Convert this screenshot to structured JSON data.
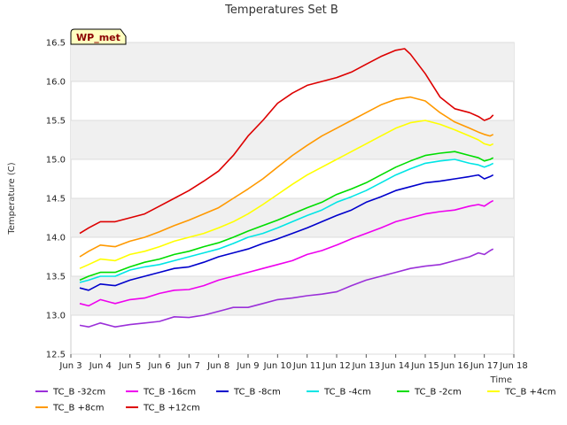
{
  "chart_data": {
    "type": "line",
    "title": "Temperatures Set B",
    "xlabel": "Time",
    "ylabel": "Temperature (C)",
    "badge": "WP_met",
    "xlim": [
      3,
      18
    ],
    "ylim": [
      12.5,
      16.5
    ],
    "x_ticks": [
      {
        "value": 3,
        "label": "Jun 3"
      },
      {
        "value": 4,
        "label": "Jun 4"
      },
      {
        "value": 5,
        "label": "Jun 5"
      },
      {
        "value": 6,
        "label": "Jun 6"
      },
      {
        "value": 7,
        "label": "Jun 7"
      },
      {
        "value": 8,
        "label": "Jun 8"
      },
      {
        "value": 9,
        "label": "Jun 9"
      },
      {
        "value": 10,
        "label": "Jun 10"
      },
      {
        "value": 11,
        "label": "Jun 11"
      },
      {
        "value": 12,
        "label": "Jun 12"
      },
      {
        "value": 13,
        "label": "Jun 13"
      },
      {
        "value": 14,
        "label": "Jun 14"
      },
      {
        "value": 15,
        "label": "Jun 15"
      },
      {
        "value": 16,
        "label": "Jun 16"
      },
      {
        "value": 17,
        "label": "Jun 17"
      },
      {
        "value": 18,
        "label": "Jun 18"
      }
    ],
    "y_ticks": [
      12.5,
      13.0,
      13.5,
      14.0,
      14.5,
      15.0,
      15.5,
      16.0,
      16.5
    ],
    "grid": true,
    "legend_position": "bottom",
    "series": [
      {
        "name": "TC_B -32cm",
        "color": "#9b30d9",
        "x": [
          3.3,
          3.6,
          4.0,
          4.5,
          5.0,
          5.5,
          6.0,
          6.5,
          7.0,
          7.5,
          8.0,
          8.5,
          9.0,
          9.5,
          10.0,
          10.5,
          11.0,
          11.5,
          12.0,
          12.5,
          13.0,
          13.5,
          14.0,
          14.5,
          15.0,
          15.5,
          16.0,
          16.5,
          16.8,
          17.0,
          17.2,
          17.3
        ],
        "y": [
          12.87,
          12.85,
          12.9,
          12.85,
          12.88,
          12.9,
          12.92,
          12.98,
          12.97,
          13.0,
          13.05,
          13.1,
          13.1,
          13.15,
          13.2,
          13.22,
          13.25,
          13.27,
          13.3,
          13.38,
          13.45,
          13.5,
          13.55,
          13.6,
          13.63,
          13.65,
          13.7,
          13.75,
          13.8,
          13.78,
          13.83,
          13.85
        ]
      },
      {
        "name": "TC_B -16cm",
        "color": "#ee00ee",
        "x": [
          3.3,
          3.6,
          4.0,
          4.5,
          5.0,
          5.5,
          6.0,
          6.5,
          7.0,
          7.5,
          8.0,
          8.5,
          9.0,
          9.5,
          10.0,
          10.5,
          11.0,
          11.5,
          12.0,
          12.5,
          13.0,
          13.5,
          14.0,
          14.5,
          15.0,
          15.5,
          16.0,
          16.5,
          16.8,
          17.0,
          17.2,
          17.3
        ],
        "y": [
          13.15,
          13.12,
          13.2,
          13.15,
          13.2,
          13.22,
          13.28,
          13.32,
          13.33,
          13.38,
          13.45,
          13.5,
          13.55,
          13.6,
          13.65,
          13.7,
          13.78,
          13.83,
          13.9,
          13.98,
          14.05,
          14.12,
          14.2,
          14.25,
          14.3,
          14.33,
          14.35,
          14.4,
          14.42,
          14.4,
          14.45,
          14.47
        ]
      },
      {
        "name": "TC_B -8cm",
        "color": "#0000cc",
        "x": [
          3.3,
          3.6,
          4.0,
          4.5,
          5.0,
          5.5,
          6.0,
          6.5,
          7.0,
          7.5,
          8.0,
          8.5,
          9.0,
          9.5,
          10.0,
          10.5,
          11.0,
          11.5,
          12.0,
          12.5,
          13.0,
          13.5,
          14.0,
          14.5,
          15.0,
          15.5,
          16.0,
          16.5,
          16.8,
          17.0,
          17.2,
          17.3
        ],
        "y": [
          13.35,
          13.32,
          13.4,
          13.38,
          13.45,
          13.5,
          13.55,
          13.6,
          13.62,
          13.68,
          13.75,
          13.8,
          13.85,
          13.92,
          13.98,
          14.05,
          14.12,
          14.2,
          14.28,
          14.35,
          14.45,
          14.52,
          14.6,
          14.65,
          14.7,
          14.72,
          14.75,
          14.78,
          14.8,
          14.75,
          14.78,
          14.8
        ]
      },
      {
        "name": "TC_B -4cm",
        "color": "#00e5e5",
        "x": [
          3.3,
          3.6,
          4.0,
          4.5,
          5.0,
          5.5,
          6.0,
          6.5,
          7.0,
          7.5,
          8.0,
          8.5,
          9.0,
          9.5,
          10.0,
          10.5,
          11.0,
          11.5,
          12.0,
          12.5,
          13.0,
          13.5,
          14.0,
          14.5,
          15.0,
          15.5,
          16.0,
          16.5,
          16.8,
          17.0,
          17.2,
          17.3
        ],
        "y": [
          13.42,
          13.45,
          13.5,
          13.5,
          13.58,
          13.62,
          13.65,
          13.7,
          13.75,
          13.8,
          13.85,
          13.92,
          14.0,
          14.05,
          14.12,
          14.2,
          14.28,
          14.35,
          14.45,
          14.52,
          14.6,
          14.7,
          14.8,
          14.88,
          14.95,
          14.98,
          15.0,
          14.95,
          14.93,
          14.9,
          14.93,
          14.95
        ]
      },
      {
        "name": "TC_B -2cm",
        "color": "#00dd00",
        "x": [
          3.3,
          3.6,
          4.0,
          4.5,
          5.0,
          5.5,
          6.0,
          6.5,
          7.0,
          7.5,
          8.0,
          8.5,
          9.0,
          9.5,
          10.0,
          10.5,
          11.0,
          11.5,
          12.0,
          12.5,
          13.0,
          13.5,
          14.0,
          14.5,
          15.0,
          15.5,
          16.0,
          16.5,
          16.8,
          17.0,
          17.2,
          17.3
        ],
        "y": [
          13.45,
          13.5,
          13.55,
          13.55,
          13.62,
          13.68,
          13.72,
          13.78,
          13.82,
          13.88,
          13.93,
          14.0,
          14.08,
          14.15,
          14.22,
          14.3,
          14.38,
          14.45,
          14.55,
          14.62,
          14.7,
          14.8,
          14.9,
          14.98,
          15.05,
          15.08,
          15.1,
          15.05,
          15.02,
          14.98,
          15.0,
          15.02
        ]
      },
      {
        "name": "TC_B +4cm",
        "color": "#ffff00",
        "x": [
          3.3,
          3.6,
          4.0,
          4.5,
          5.0,
          5.5,
          6.0,
          6.5,
          7.0,
          7.5,
          8.0,
          8.5,
          9.0,
          9.5,
          10.0,
          10.5,
          11.0,
          11.5,
          12.0,
          12.5,
          13.0,
          13.5,
          14.0,
          14.5,
          15.0,
          15.5,
          16.0,
          16.5,
          16.8,
          17.0,
          17.2,
          17.3
        ],
        "y": [
          13.6,
          13.65,
          13.72,
          13.7,
          13.78,
          13.82,
          13.88,
          13.95,
          14.0,
          14.05,
          14.12,
          14.2,
          14.3,
          14.42,
          14.55,
          14.68,
          14.8,
          14.9,
          15.0,
          15.1,
          15.2,
          15.3,
          15.4,
          15.47,
          15.5,
          15.45,
          15.38,
          15.3,
          15.25,
          15.2,
          15.18,
          15.2
        ]
      },
      {
        "name": "TC_B +8cm",
        "color": "#ff9900",
        "x": [
          3.3,
          3.6,
          4.0,
          4.5,
          5.0,
          5.5,
          6.0,
          6.5,
          7.0,
          7.5,
          8.0,
          8.5,
          9.0,
          9.5,
          10.0,
          10.5,
          11.0,
          11.5,
          12.0,
          12.5,
          13.0,
          13.5,
          14.0,
          14.5,
          15.0,
          15.5,
          16.0,
          16.5,
          16.8,
          17.0,
          17.2,
          17.3
        ],
        "y": [
          13.75,
          13.82,
          13.9,
          13.88,
          13.95,
          14.0,
          14.07,
          14.15,
          14.22,
          14.3,
          14.38,
          14.5,
          14.62,
          14.75,
          14.9,
          15.05,
          15.18,
          15.3,
          15.4,
          15.5,
          15.6,
          15.7,
          15.77,
          15.8,
          15.75,
          15.6,
          15.48,
          15.4,
          15.35,
          15.32,
          15.3,
          15.32
        ]
      },
      {
        "name": "TC_B +12cm",
        "color": "#dd0000",
        "x": [
          3.3,
          3.6,
          4.0,
          4.5,
          5.0,
          5.5,
          6.0,
          6.5,
          7.0,
          7.5,
          8.0,
          8.5,
          9.0,
          9.5,
          10.0,
          10.5,
          11.0,
          11.5,
          12.0,
          12.5,
          13.0,
          13.5,
          14.0,
          14.3,
          14.5,
          15.0,
          15.5,
          16.0,
          16.5,
          16.8,
          17.0,
          17.2,
          17.3
        ],
        "y": [
          14.05,
          14.12,
          14.2,
          14.2,
          14.25,
          14.3,
          14.4,
          14.5,
          14.6,
          14.72,
          14.85,
          15.05,
          15.3,
          15.5,
          15.72,
          15.85,
          15.95,
          16.0,
          16.05,
          16.12,
          16.22,
          16.32,
          16.4,
          16.42,
          16.35,
          16.1,
          15.8,
          15.65,
          15.6,
          15.55,
          15.5,
          15.53,
          15.57
        ]
      }
    ]
  }
}
